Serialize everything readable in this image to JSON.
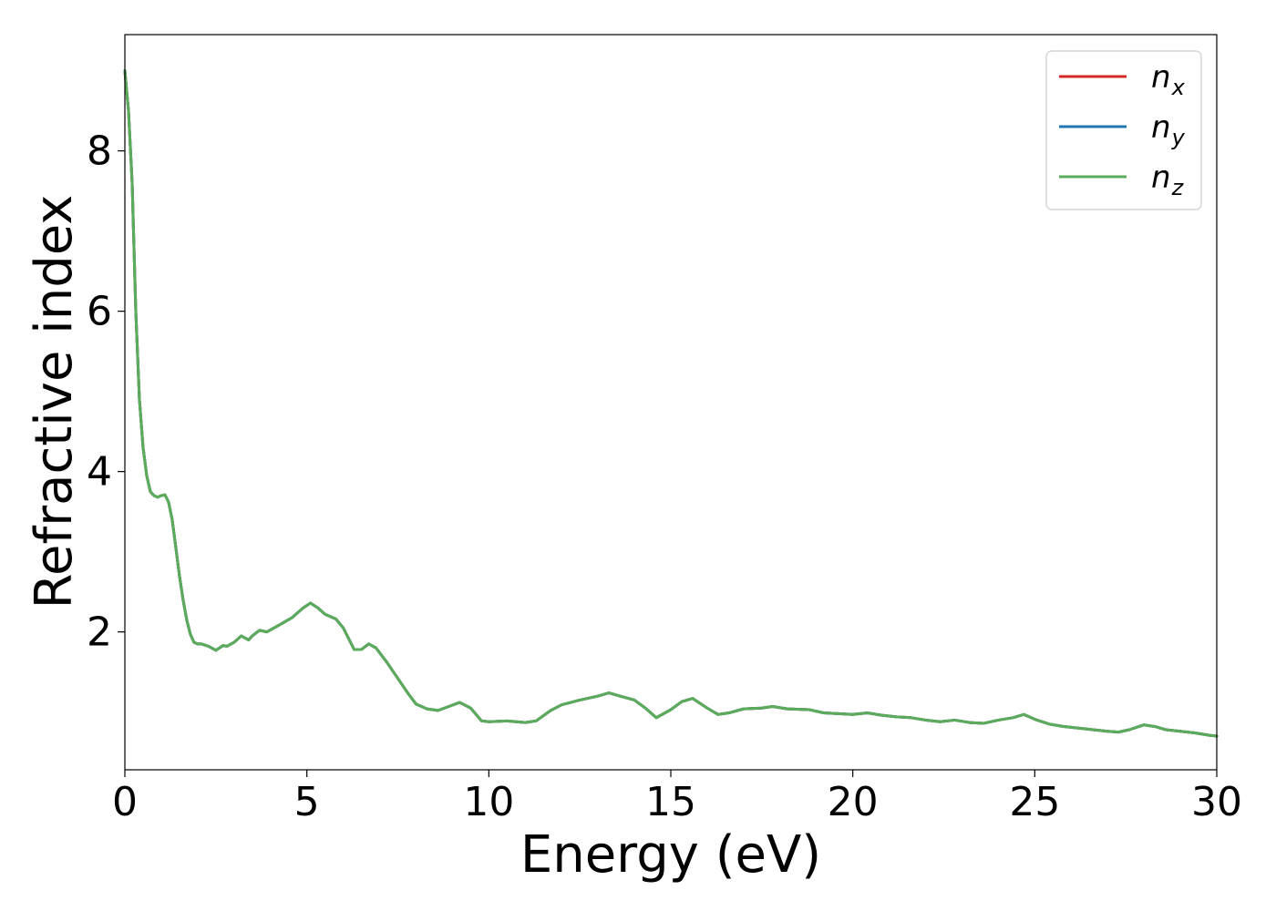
{
  "chart_data": {
    "type": "line",
    "xlabel": "Energy (eV)",
    "ylabel": "Refractive index",
    "xlim": [
      0,
      30
    ],
    "ylim": [
      0.28,
      9.45
    ],
    "xticks": [
      0,
      5,
      10,
      15,
      20,
      25,
      30
    ],
    "yticks": [
      2,
      4,
      6,
      8
    ],
    "grid": false,
    "legend_position": "top-right",
    "series": [
      {
        "name": "n_x",
        "label_main": "n",
        "label_sub": "x",
        "color": "#d62728",
        "x": [
          0,
          0.1,
          0.2,
          0.3,
          0.4,
          0.5,
          0.6,
          0.7,
          0.8,
          0.9,
          1.0,
          1.1,
          1.2,
          1.3,
          1.4,
          1.5,
          1.6,
          1.7,
          1.8,
          1.9,
          2.0,
          2.1,
          2.3,
          2.5,
          2.7,
          2.8,
          3.0,
          3.2,
          3.4,
          3.5,
          3.7,
          3.9,
          4.1,
          4.3,
          4.6,
          4.9,
          5.1,
          5.3,
          5.5,
          5.8,
          6.0,
          6.3,
          6.5,
          6.7,
          6.9,
          7.2,
          7.5,
          7.8,
          8.0,
          8.3,
          8.6,
          8.9,
          9.2,
          9.5,
          9.8,
          10.0,
          10.5,
          11.0,
          11.3,
          11.7,
          12.0,
          12.5,
          13.0,
          13.3,
          13.6,
          14.0,
          14.3,
          14.6,
          15.0,
          15.3,
          15.6,
          16.0,
          16.3,
          16.6,
          17.0,
          17.5,
          17.8,
          18.2,
          18.8,
          19.2,
          19.6,
          20.0,
          20.4,
          20.8,
          21.2,
          21.6,
          22.0,
          22.4,
          22.8,
          23.2,
          23.6,
          24.0,
          24.4,
          24.7,
          25.0,
          25.4,
          25.8,
          26.2,
          26.6,
          27.0,
          27.3,
          27.6,
          28.0,
          28.3,
          28.6,
          29.0,
          29.4,
          29.8,
          30.0
        ],
        "y": [
          9.0,
          8.5,
          7.6,
          6.0,
          4.9,
          4.3,
          3.95,
          3.75,
          3.7,
          3.68,
          3.7,
          3.71,
          3.62,
          3.4,
          3.05,
          2.7,
          2.4,
          2.15,
          1.97,
          1.87,
          1.85,
          1.85,
          1.82,
          1.77,
          1.83,
          1.82,
          1.87,
          1.95,
          1.9,
          1.95,
          2.02,
          2.0,
          2.05,
          2.1,
          2.18,
          2.3,
          2.36,
          2.3,
          2.22,
          2.16,
          2.05,
          1.78,
          1.78,
          1.85,
          1.8,
          1.62,
          1.42,
          1.22,
          1.1,
          1.04,
          1.02,
          1.07,
          1.12,
          1.05,
          0.89,
          0.88,
          0.89,
          0.87,
          0.89,
          1.02,
          1.09,
          1.15,
          1.2,
          1.24,
          1.2,
          1.15,
          1.05,
          0.93,
          1.03,
          1.13,
          1.17,
          1.05,
          0.97,
          0.99,
          1.04,
          1.05,
          1.07,
          1.04,
          1.03,
          0.99,
          0.98,
          0.97,
          0.99,
          0.96,
          0.94,
          0.93,
          0.9,
          0.88,
          0.9,
          0.87,
          0.86,
          0.9,
          0.93,
          0.97,
          0.91,
          0.85,
          0.82,
          0.8,
          0.78,
          0.76,
          0.75,
          0.78,
          0.84,
          0.82,
          0.78,
          0.76,
          0.74,
          0.71,
          0.7
        ]
      },
      {
        "name": "n_y",
        "label_main": "n",
        "label_sub": "y",
        "color": "#1f77b4",
        "x": [
          0,
          0.1,
          0.2,
          0.3,
          0.4,
          0.5,
          0.6,
          0.7,
          0.8,
          0.9,
          1.0,
          1.1,
          1.2,
          1.3,
          1.4,
          1.5,
          1.6,
          1.7,
          1.8,
          1.9,
          2.0,
          2.1,
          2.3,
          2.5,
          2.7,
          2.8,
          3.0,
          3.2,
          3.4,
          3.5,
          3.7,
          3.9,
          4.1,
          4.3,
          4.6,
          4.9,
          5.1,
          5.3,
          5.5,
          5.8,
          6.0,
          6.3,
          6.5,
          6.7,
          6.9,
          7.2,
          7.5,
          7.8,
          8.0,
          8.3,
          8.6,
          8.9,
          9.2,
          9.5,
          9.8,
          10.0,
          10.5,
          11.0,
          11.3,
          11.7,
          12.0,
          12.5,
          13.0,
          13.3,
          13.6,
          14.0,
          14.3,
          14.6,
          15.0,
          15.3,
          15.6,
          16.0,
          16.3,
          16.6,
          17.0,
          17.5,
          17.8,
          18.2,
          18.8,
          19.2,
          19.6,
          20.0,
          20.4,
          20.8,
          21.2,
          21.6,
          22.0,
          22.4,
          22.8,
          23.2,
          23.6,
          24.0,
          24.4,
          24.7,
          25.0,
          25.4,
          25.8,
          26.2,
          26.6,
          27.0,
          27.3,
          27.6,
          28.0,
          28.3,
          28.6,
          29.0,
          29.4,
          29.8,
          30.0
        ],
        "y": [
          9.0,
          8.5,
          7.6,
          6.0,
          4.9,
          4.3,
          3.95,
          3.75,
          3.7,
          3.68,
          3.7,
          3.71,
          3.62,
          3.4,
          3.05,
          2.7,
          2.4,
          2.15,
          1.97,
          1.87,
          1.85,
          1.85,
          1.82,
          1.77,
          1.83,
          1.82,
          1.87,
          1.95,
          1.9,
          1.95,
          2.02,
          2.0,
          2.05,
          2.1,
          2.18,
          2.3,
          2.36,
          2.3,
          2.22,
          2.16,
          2.05,
          1.78,
          1.78,
          1.85,
          1.8,
          1.62,
          1.42,
          1.22,
          1.1,
          1.04,
          1.02,
          1.07,
          1.12,
          1.05,
          0.89,
          0.88,
          0.89,
          0.87,
          0.89,
          1.02,
          1.09,
          1.15,
          1.2,
          1.24,
          1.2,
          1.15,
          1.05,
          0.93,
          1.03,
          1.13,
          1.17,
          1.05,
          0.97,
          0.99,
          1.04,
          1.05,
          1.07,
          1.04,
          1.03,
          0.99,
          0.98,
          0.97,
          0.99,
          0.96,
          0.94,
          0.93,
          0.9,
          0.88,
          0.9,
          0.87,
          0.86,
          0.9,
          0.93,
          0.97,
          0.91,
          0.85,
          0.82,
          0.8,
          0.78,
          0.76,
          0.75,
          0.78,
          0.84,
          0.82,
          0.78,
          0.76,
          0.74,
          0.71,
          0.7
        ]
      },
      {
        "name": "n_z",
        "label_main": "n",
        "label_sub": "z",
        "color": "#5aac5a",
        "x": [
          0,
          0.1,
          0.2,
          0.3,
          0.4,
          0.5,
          0.6,
          0.7,
          0.8,
          0.9,
          1.0,
          1.1,
          1.2,
          1.3,
          1.4,
          1.5,
          1.6,
          1.7,
          1.8,
          1.9,
          2.0,
          2.1,
          2.3,
          2.5,
          2.7,
          2.8,
          3.0,
          3.2,
          3.4,
          3.5,
          3.7,
          3.9,
          4.1,
          4.3,
          4.6,
          4.9,
          5.1,
          5.3,
          5.5,
          5.8,
          6.0,
          6.3,
          6.5,
          6.7,
          6.9,
          7.2,
          7.5,
          7.8,
          8.0,
          8.3,
          8.6,
          8.9,
          9.2,
          9.5,
          9.8,
          10.0,
          10.5,
          11.0,
          11.3,
          11.7,
          12.0,
          12.5,
          13.0,
          13.3,
          13.6,
          14.0,
          14.3,
          14.6,
          15.0,
          15.3,
          15.6,
          16.0,
          16.3,
          16.6,
          17.0,
          17.5,
          17.8,
          18.2,
          18.8,
          19.2,
          19.6,
          20.0,
          20.4,
          20.8,
          21.2,
          21.6,
          22.0,
          22.4,
          22.8,
          23.2,
          23.6,
          24.0,
          24.4,
          24.7,
          25.0,
          25.4,
          25.8,
          26.2,
          26.6,
          27.0,
          27.3,
          27.6,
          28.0,
          28.3,
          28.6,
          29.0,
          29.4,
          29.8,
          30.0
        ],
        "y": [
          9.0,
          8.5,
          7.6,
          6.0,
          4.9,
          4.3,
          3.95,
          3.75,
          3.7,
          3.68,
          3.7,
          3.71,
          3.62,
          3.4,
          3.05,
          2.7,
          2.4,
          2.15,
          1.97,
          1.87,
          1.85,
          1.85,
          1.82,
          1.77,
          1.83,
          1.82,
          1.87,
          1.95,
          1.9,
          1.95,
          2.02,
          2.0,
          2.05,
          2.1,
          2.18,
          2.3,
          2.36,
          2.3,
          2.22,
          2.16,
          2.05,
          1.78,
          1.78,
          1.85,
          1.8,
          1.62,
          1.42,
          1.22,
          1.1,
          1.04,
          1.02,
          1.07,
          1.12,
          1.05,
          0.89,
          0.88,
          0.89,
          0.87,
          0.89,
          1.02,
          1.09,
          1.15,
          1.2,
          1.24,
          1.2,
          1.15,
          1.05,
          0.93,
          1.03,
          1.13,
          1.17,
          1.05,
          0.97,
          0.99,
          1.04,
          1.05,
          1.07,
          1.04,
          1.03,
          0.99,
          0.98,
          0.97,
          0.99,
          0.96,
          0.94,
          0.93,
          0.9,
          0.88,
          0.9,
          0.87,
          0.86,
          0.9,
          0.93,
          0.97,
          0.91,
          0.85,
          0.82,
          0.8,
          0.78,
          0.76,
          0.75,
          0.78,
          0.84,
          0.82,
          0.78,
          0.76,
          0.74,
          0.71,
          0.7
        ]
      }
    ]
  }
}
